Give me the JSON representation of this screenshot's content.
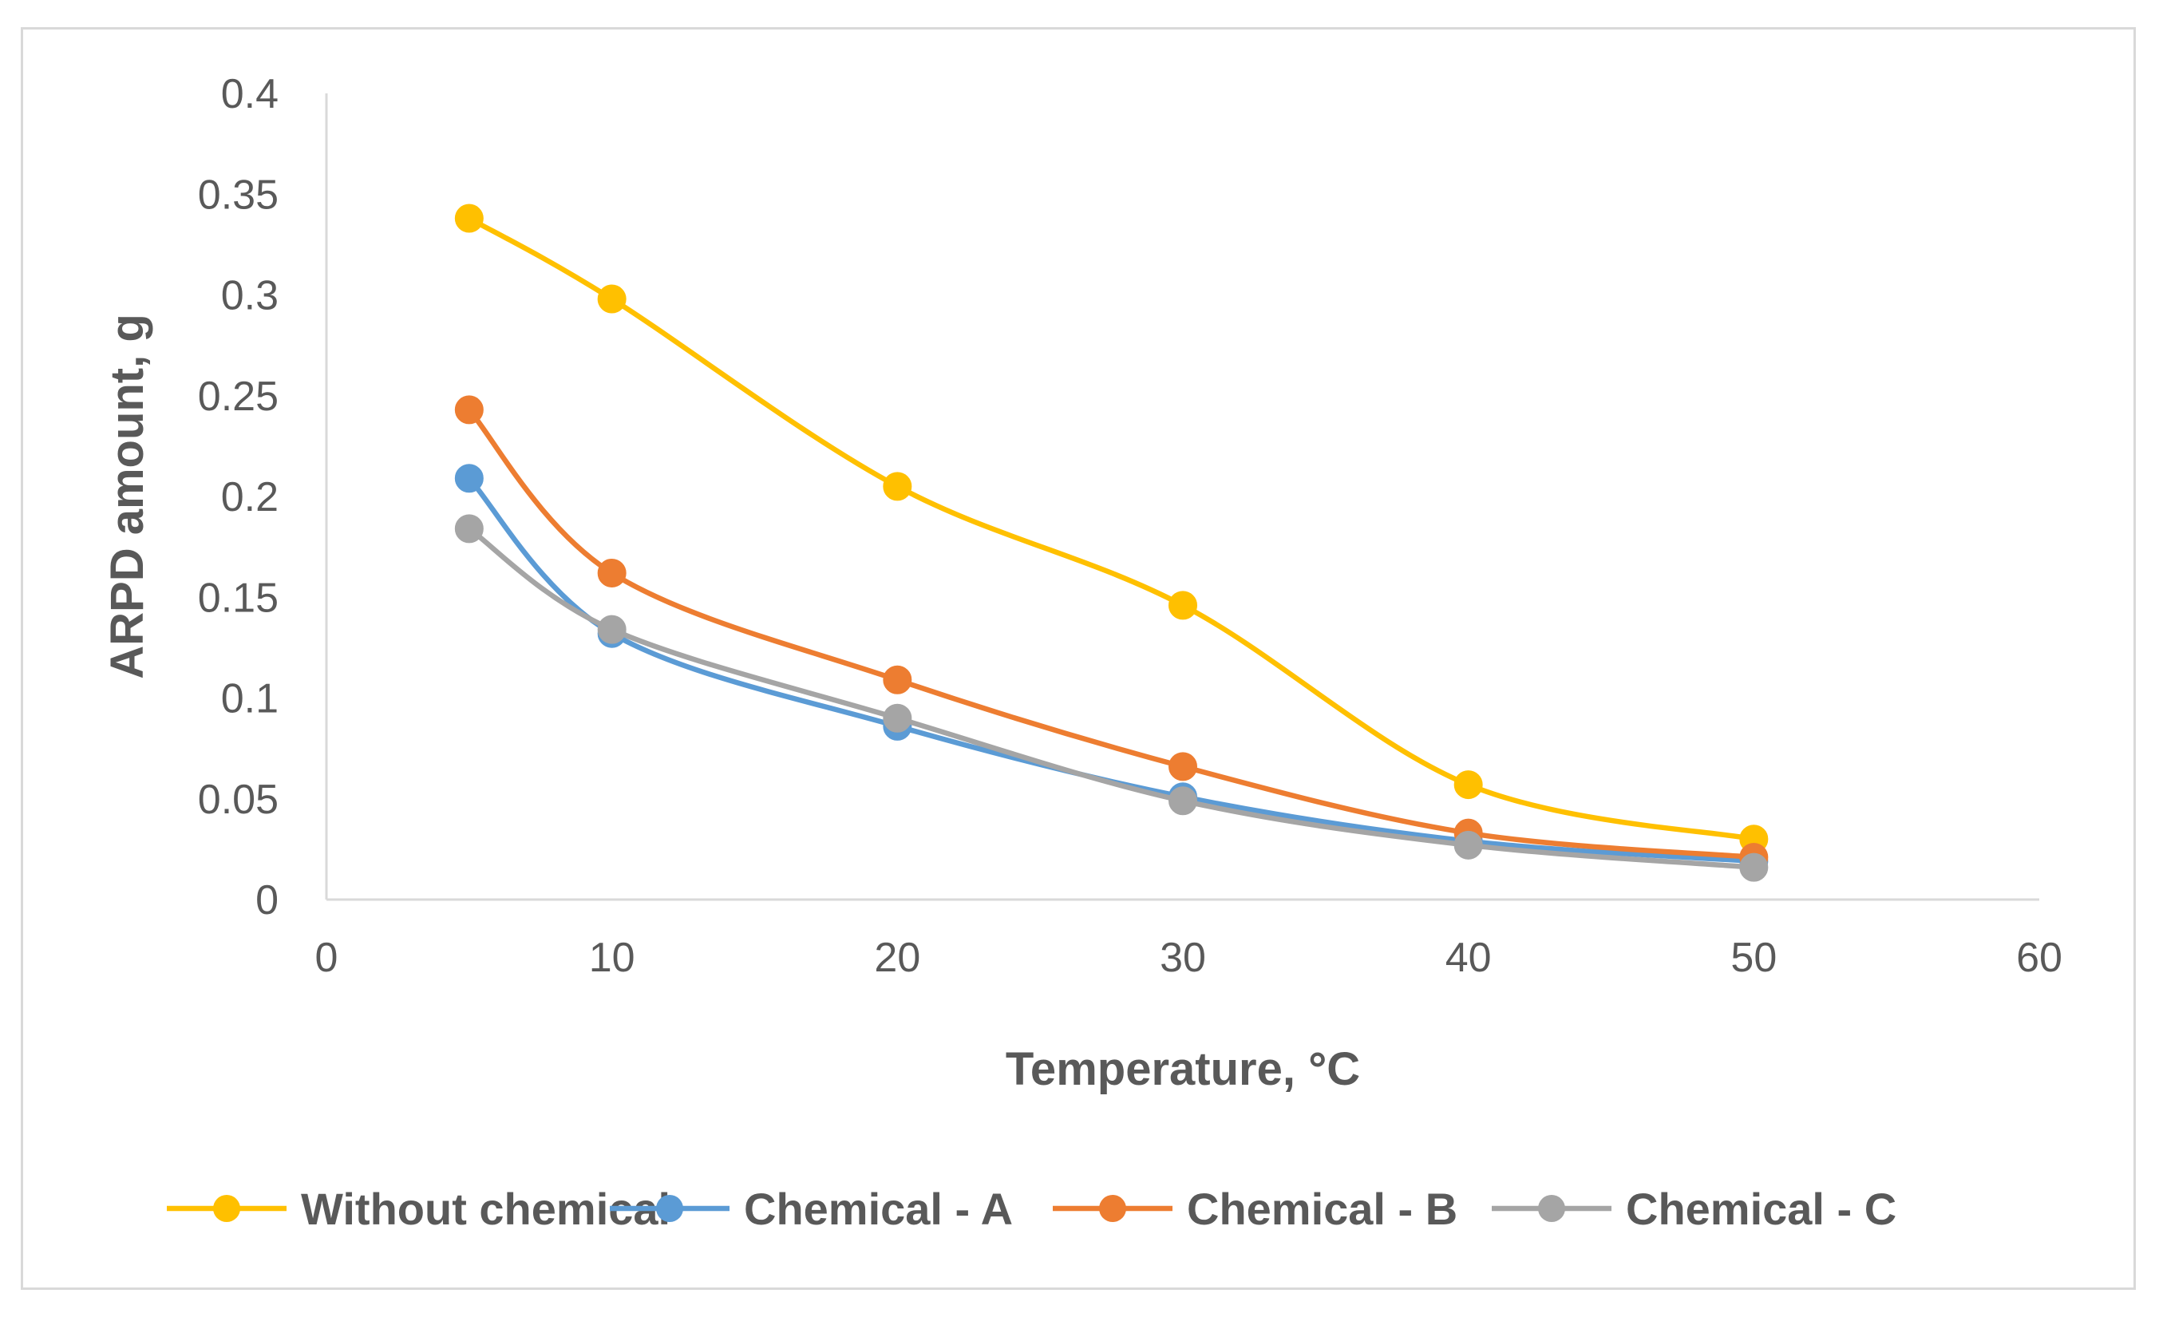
{
  "chart_data": {
    "type": "line",
    "title": "",
    "xlabel": "Temperature, °C",
    "ylabel": "ARPD amount, g",
    "xlim": [
      0,
      60
    ],
    "ylim": [
      0,
      0.4
    ],
    "xticks": [
      "0",
      "10",
      "20",
      "30",
      "40",
      "50",
      "60"
    ],
    "yticks": [
      "0",
      "0.05",
      "0.1",
      "0.15",
      "0.2",
      "0.25",
      "0.3",
      "0.35",
      "0.4"
    ],
    "grid": false,
    "legend_position": "bottom",
    "x": [
      5,
      10,
      20,
      30,
      40,
      50
    ],
    "series": [
      {
        "name": "Without chemical",
        "color": "#FFC000",
        "values": [
          0.338,
          0.298,
          0.205,
          0.146,
          0.057,
          0.03
        ]
      },
      {
        "name": "Chemical - A",
        "color": "#5B9BD5",
        "values": [
          0.209,
          0.132,
          0.086,
          0.051,
          0.029,
          0.019
        ]
      },
      {
        "name": "Chemical - B",
        "color": "#ED7D31",
        "values": [
          0.243,
          0.162,
          0.109,
          0.066,
          0.033,
          0.021
        ]
      },
      {
        "name": "Chemical - C",
        "color": "#A5A5A5",
        "values": [
          0.184,
          0.134,
          0.09,
          0.049,
          0.027,
          0.016
        ]
      }
    ]
  }
}
